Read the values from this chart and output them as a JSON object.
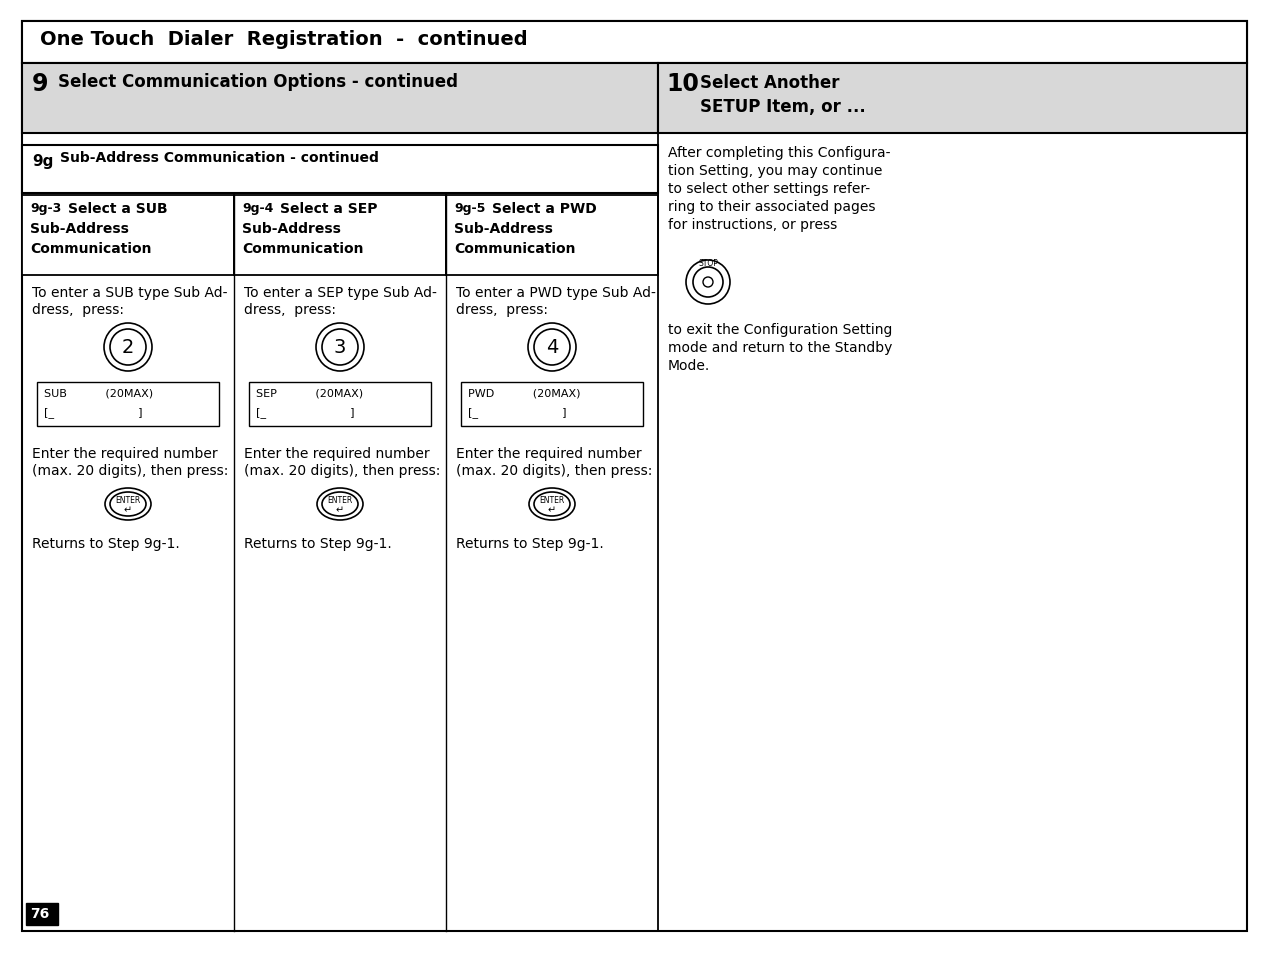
{
  "title": "One Touch  Dialer  Registration  -  continued",
  "step9_label": "9",
  "step9_text": "Select Communication Options - continued",
  "step10_label": "10",
  "step10_line1": "Select Another",
  "step10_line2": "SETUP Item, or ...",
  "step9g_label": "9g",
  "step9g_text": "Sub-Address Communication - continued",
  "right_lines": [
    "After completing this Configura-",
    "tion Setting, you may continue",
    "to select other settings refer-",
    "ring to their associated pages",
    "for instructions, or press"
  ],
  "right_lines2": [
    "to exit the Configuration Setting",
    "mode and return to the Standby",
    "Mode."
  ],
  "cols": [
    {
      "step": "9g-3",
      "title1": "Select a SUB",
      "title2": "Sub-Address",
      "title3": "Communication",
      "key": "2",
      "desc1": "To enter a SUB type Sub Ad-",
      "desc2": "dress,  press:",
      "disp1": "SUB           (20MAX)",
      "disp2": "[_                        ]",
      "enter1": "Enter the required number",
      "enter2": "(max. 20 digits), then press:",
      "ret": "Returns to Step 9g-1."
    },
    {
      "step": "9g-4",
      "title1": "Select a SEP",
      "title2": "Sub-Address",
      "title3": "Communication",
      "key": "3",
      "desc1": "To enter a SEP type Sub Ad-",
      "desc2": "dress,  press:",
      "disp1": "SEP           (20MAX)",
      "disp2": "[_                        ]",
      "enter1": "Enter the required number",
      "enter2": "(max. 20 digits), then press:",
      "ret": "Returns to Step 9g-1."
    },
    {
      "step": "9g-5",
      "title1": "Select a PWD",
      "title2": "Sub-Address",
      "title3": "Communication",
      "key": "4",
      "desc1": "To enter a PWD type Sub Ad-",
      "desc2": "dress,  press:",
      "disp1": "PWD           (20MAX)",
      "disp2": "[_                        ]",
      "enter1": "Enter the required number",
      "enter2": "(max. 20 digits), then press:",
      "ret": "Returns to Step 9g-1."
    }
  ],
  "page_number": "76",
  "bg_color": "#ffffff",
  "header_bg": "#d8d8d8"
}
